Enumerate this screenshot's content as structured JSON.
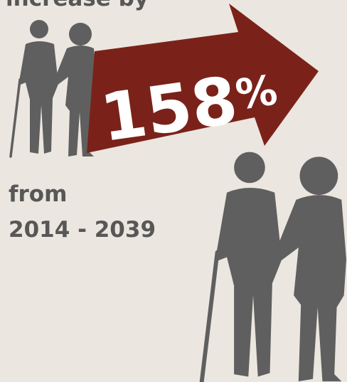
{
  "heading": "increase by",
  "headline": {
    "number": "158",
    "unit": "%"
  },
  "period": {
    "prefix": "from",
    "range": "2014 - 2039"
  }
}
